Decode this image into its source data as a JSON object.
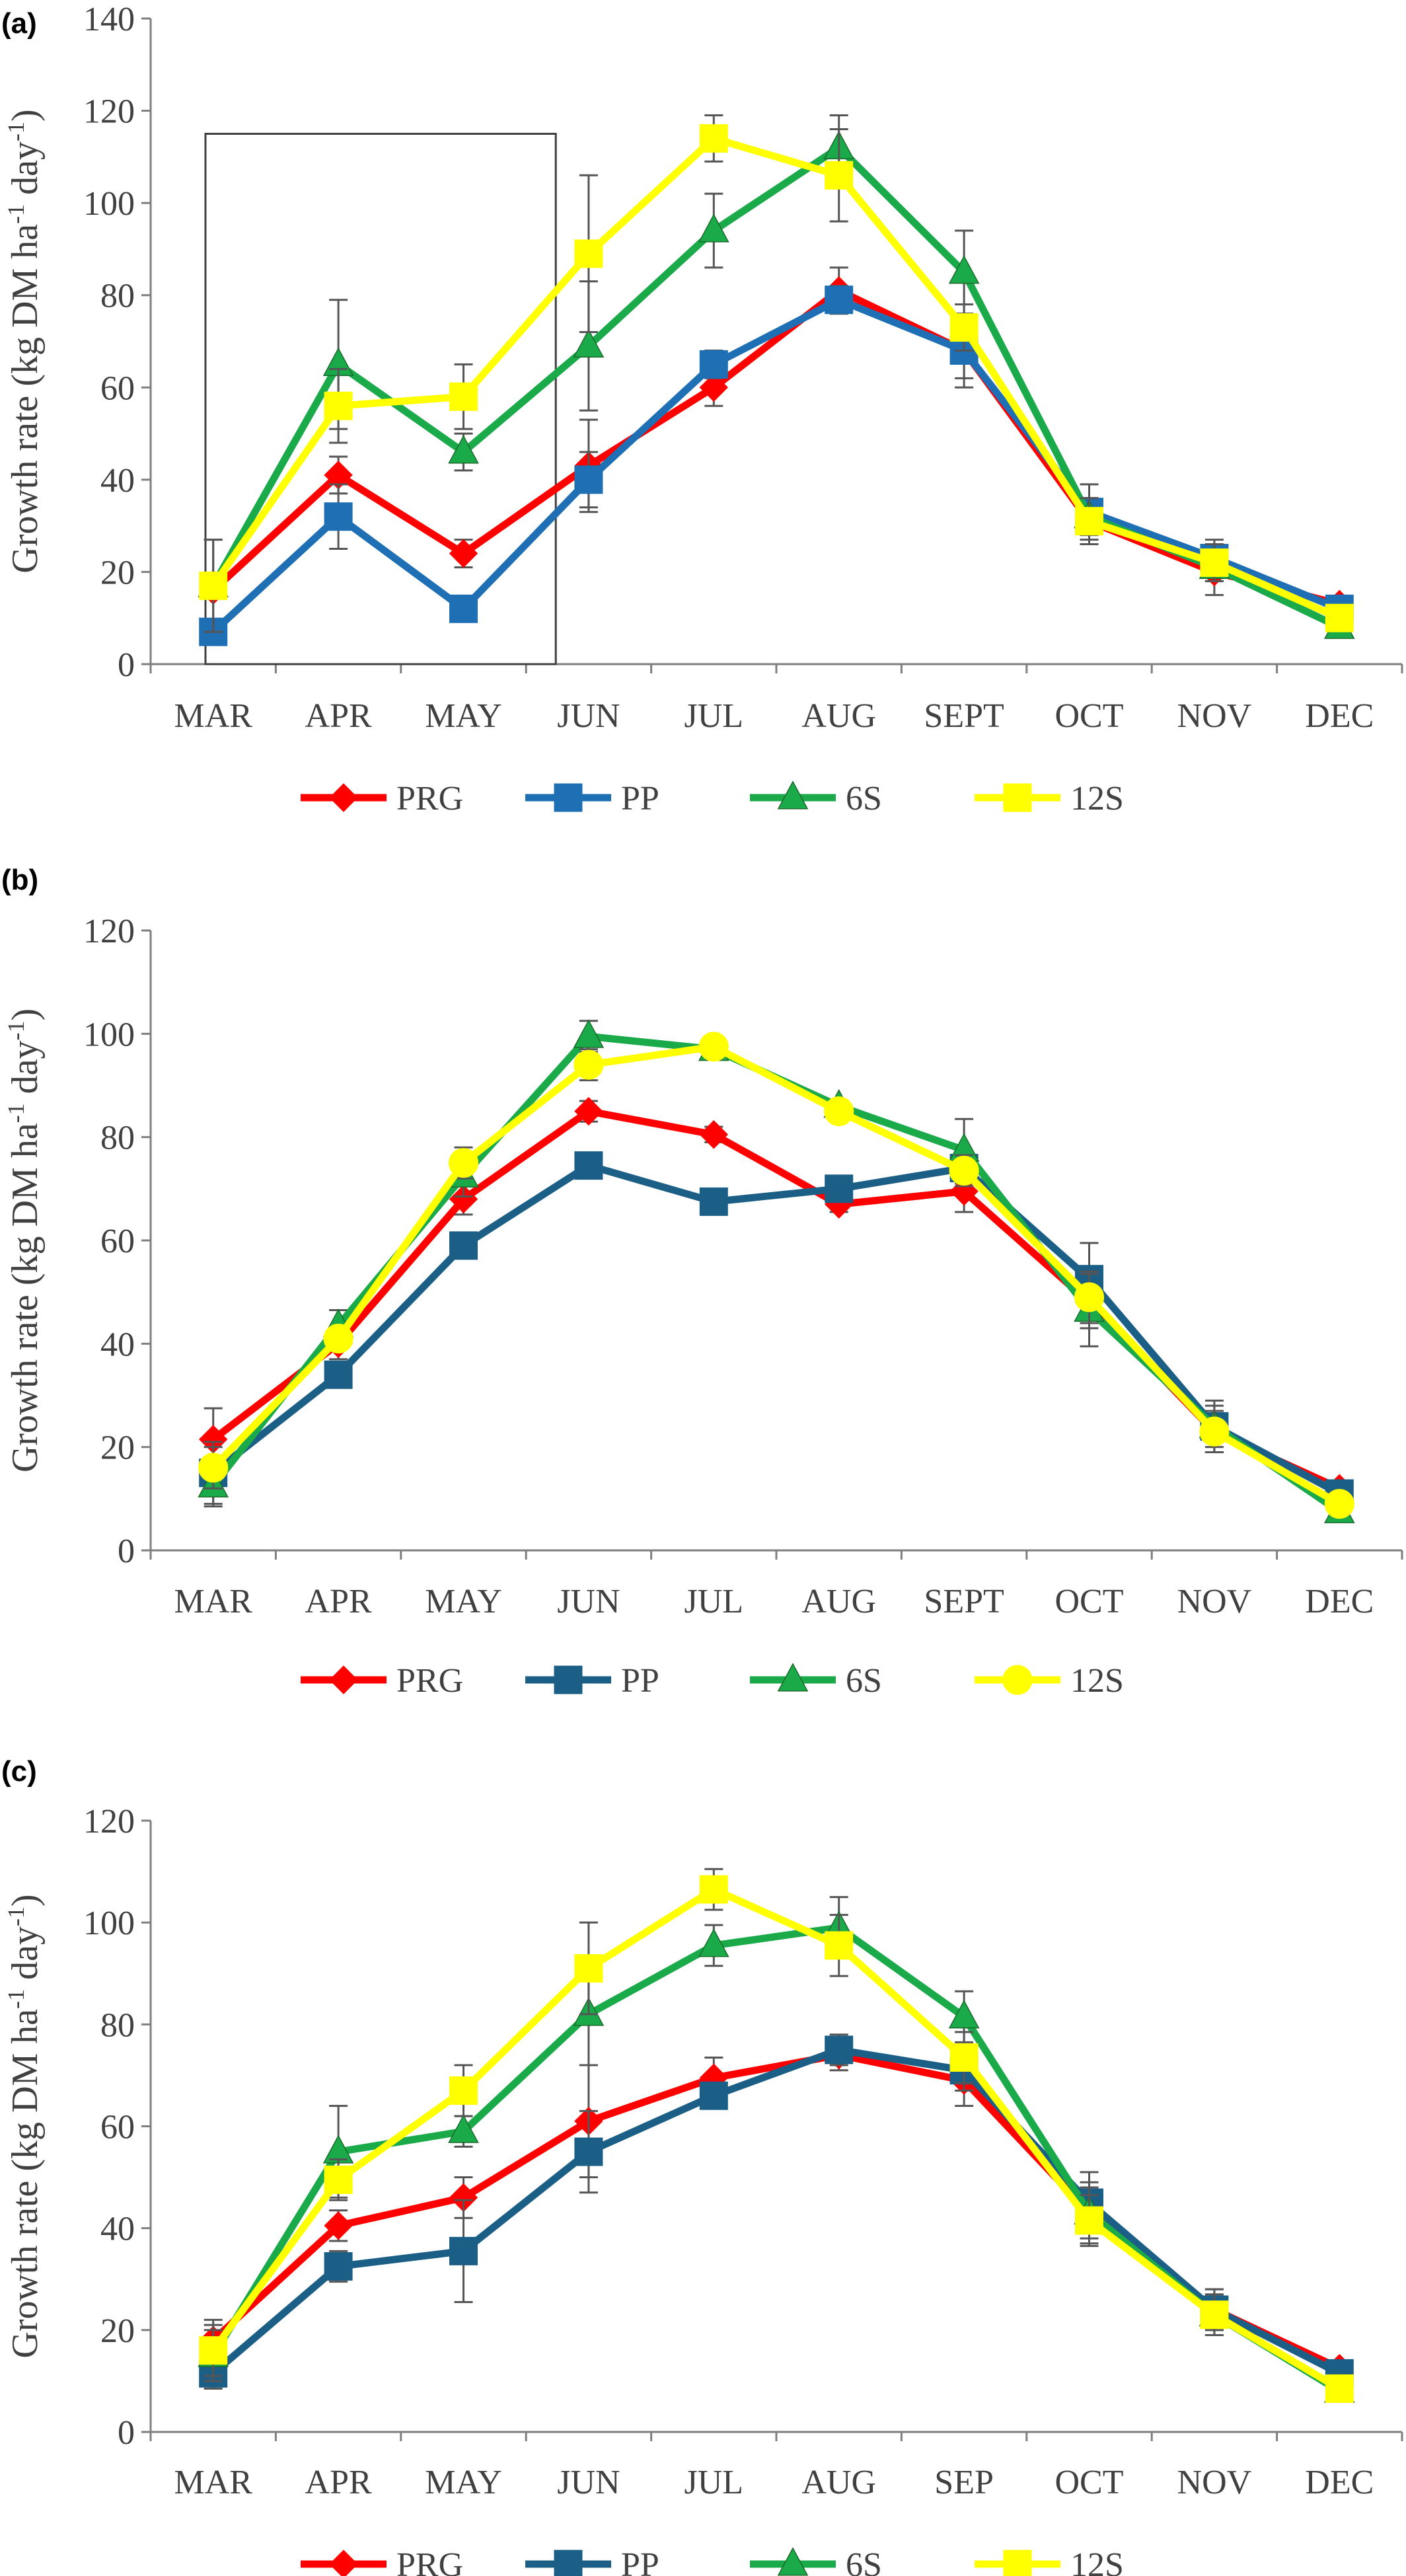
{
  "chart_data": [
    {
      "panel": "(a)",
      "type": "line",
      "ylabel": "Growth rate (kg DM ha⁻¹ day⁻¹)",
      "ylabel_parts": [
        "Growth rate (kg DM ha",
        "-1",
        " day",
        "-1",
        ")"
      ],
      "ylim": [
        0,
        140
      ],
      "yticks": [
        0,
        20,
        40,
        60,
        80,
        100,
        120,
        140
      ],
      "categories": [
        "MAR",
        "APR",
        "MAY",
        "JUN",
        "JUL",
        "AUG",
        "SEPT",
        "OCT",
        "NOV",
        "DEC"
      ],
      "highlight_box": {
        "from_category": "MAR",
        "to_category": "JUN",
        "top_value": 115
      },
      "series": [
        {
          "name": "PRG",
          "color": "#ff0000",
          "marker": "diamond",
          "values": [
            16,
            41,
            24,
            43,
            60,
            81,
            68,
            31,
            20,
            13
          ],
          "errors": [
            0,
            4,
            3,
            10,
            4,
            5,
            6,
            5,
            5,
            0
          ]
        },
        {
          "name": "PP",
          "color": "#1f6fb5",
          "marker": "square",
          "values": [
            7,
            32,
            12,
            40,
            65,
            79,
            68,
            33,
            23,
            12
          ],
          "errors": [
            0,
            7,
            0,
            6,
            3,
            3,
            8,
            6,
            4,
            0
          ]
        },
        {
          "name": "6S",
          "color": "#1aaa4a",
          "marker": "triangle",
          "values": [
            17,
            65,
            46,
            69,
            94,
            112,
            85,
            32,
            21,
            8
          ],
          "errors": [
            10,
            14,
            4,
            14,
            8,
            7,
            9,
            4,
            3,
            0
          ]
        },
        {
          "name": "12S",
          "color": "#ffff00",
          "marker": "square",
          "values": [
            17,
            56,
            58,
            89,
            114,
            106,
            73,
            31,
            22,
            10
          ],
          "errors": [
            10,
            8,
            7,
            17,
            5,
            10,
            5,
            5,
            4,
            0
          ]
        }
      ]
    },
    {
      "panel": "(b)",
      "type": "line",
      "ylabel": "Growth rate (kg DM ha⁻¹ day⁻¹)",
      "ylabel_parts": [
        "Growth rate (kg DM ha",
        "-1",
        " day",
        "-1",
        ")"
      ],
      "ylim": [
        0,
        120
      ],
      "yticks": [
        0,
        20,
        40,
        60,
        80,
        100,
        120
      ],
      "categories": [
        "MAR",
        "APR",
        "MAY",
        "JUN",
        "JUL",
        "AUG",
        "SEPT",
        "OCT",
        "NOV",
        "DEC"
      ],
      "series": [
        {
          "name": "PRG",
          "color": "#ff0000",
          "marker": "diamond",
          "values": [
            21.5,
            40,
            68,
            85,
            80.5,
            67,
            69.5,
            48,
            23,
            12
          ],
          "errors": [
            6,
            3,
            3,
            2,
            1.5,
            1.5,
            4,
            5,
            4,
            0
          ]
        },
        {
          "name": "PP",
          "color": "#1b5f87",
          "marker": "square",
          "values": [
            15,
            34,
            59,
            74.5,
            67.5,
            70,
            74,
            52.5,
            24,
            11
          ],
          "errors": [
            6,
            2,
            1.5,
            2,
            1.5,
            1.5,
            3,
            7,
            5,
            0
          ]
        },
        {
          "name": "6S",
          "color": "#1aaa4a",
          "marker": "triangle",
          "values": [
            12.5,
            43.5,
            72.5,
            99.5,
            97,
            86,
            77.5,
            46.5,
            24,
            7.5
          ],
          "errors": [
            4,
            3,
            4,
            3,
            1,
            1,
            6,
            7,
            4,
            0
          ]
        },
        {
          "name": "12S",
          "color": "#ffff00",
          "marker": "circle",
          "values": [
            16,
            41,
            75,
            94,
            97.5,
            85,
            73.5,
            49,
            23,
            9
          ],
          "errors": [
            4,
            2,
            3,
            3,
            1,
            1,
            3,
            5,
            4,
            0
          ]
        }
      ]
    },
    {
      "panel": "(c)",
      "type": "line",
      "ylabel": "Growth rate (kg DM ha⁻¹ day⁻¹)",
      "ylabel_parts": [
        "Growth rate (kg DM ha",
        "-1",
        " day",
        "-1",
        ")"
      ],
      "ylim": [
        0,
        120
      ],
      "yticks": [
        0,
        20,
        40,
        60,
        80,
        100,
        120
      ],
      "categories": [
        "MAR",
        "APR",
        "MAY",
        "JUN",
        "JUL",
        "AUG",
        "SEP",
        "OCT",
        "NOV",
        "DEC"
      ],
      "series": [
        {
          "name": "PRG",
          "color": "#ff0000",
          "marker": "diamond",
          "values": [
            18,
            40.5,
            46,
            61,
            69.5,
            74,
            69,
            43,
            24,
            12.5
          ],
          "errors": [
            4,
            3,
            4,
            11,
            4,
            3,
            5,
            6,
            4,
            0
          ]
        },
        {
          "name": "PP",
          "color": "#1b5f87",
          "marker": "square",
          "values": [
            11.5,
            32.5,
            35.5,
            55,
            66,
            75,
            71,
            45,
            24,
            11.5
          ],
          "errors": [
            3,
            3,
            10,
            8,
            2,
            3,
            4,
            6,
            4,
            0
          ]
        },
        {
          "name": "6S",
          "color": "#1aaa4a",
          "marker": "triangle",
          "values": [
            15,
            55,
            59,
            82,
            95.5,
            99,
            81.5,
            43,
            23,
            8
          ],
          "errors": [
            5,
            9,
            3,
            10,
            4,
            6,
            5,
            5,
            4,
            0
          ]
        },
        {
          "name": "12S",
          "color": "#ffff00",
          "marker": "square",
          "values": [
            16,
            49.5,
            67,
            91,
            106.5,
            95.5,
            73.5,
            41.5,
            23,
            8.5
          ],
          "errors": [
            5,
            4,
            5,
            9,
            4,
            6,
            5,
            5,
            4,
            0
          ]
        }
      ]
    }
  ]
}
